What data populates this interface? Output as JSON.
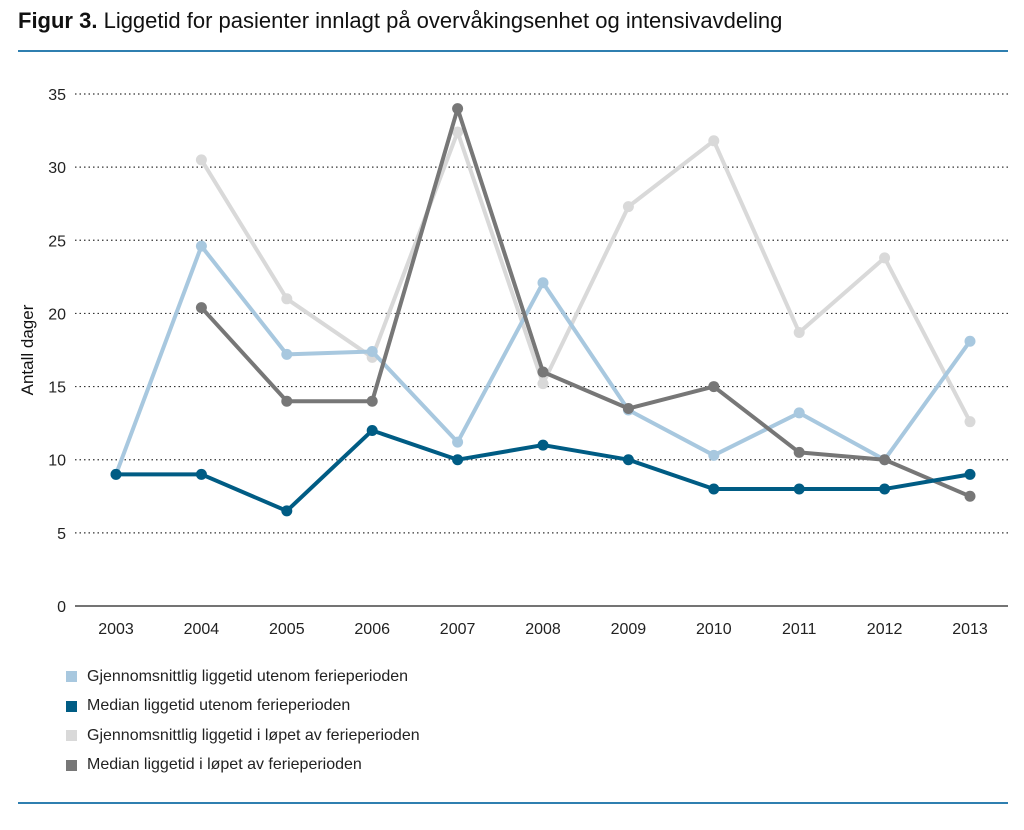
{
  "title": {
    "prefix": "Figur 3.",
    "text": "Liggetid for pasienter innlagt på overvåkingsenhet og intensivavdeling"
  },
  "chart_data": {
    "type": "line",
    "title": "Liggetid for pasienter innlagt på overvåkingsenhet og intensivavdeling",
    "xlabel": "",
    "ylabel": "Antall dager",
    "ylim": [
      0,
      35
    ],
    "yticks": [
      0,
      5,
      10,
      15,
      20,
      25,
      30,
      35
    ],
    "grid": "horizontal dotted",
    "legend": "bottom-left",
    "categories": [
      "2003",
      "2004",
      "2005",
      "2006",
      "2007",
      "2008",
      "2009",
      "2010",
      "2011",
      "2012",
      "2013"
    ],
    "series": [
      {
        "name": "Gjennomsnittlig liggetid utenom ferieperioden",
        "color": "#a8c8df",
        "values": [
          9,
          24.6,
          17.2,
          17.4,
          11.2,
          22.1,
          13.4,
          10.3,
          13.2,
          10.0,
          18.1
        ]
      },
      {
        "name": "Median liggetid utenom ferieperioden",
        "color": "#005c84",
        "values": [
          9,
          9,
          6.5,
          12,
          10,
          11,
          10,
          8,
          8,
          8,
          9
        ]
      },
      {
        "name": "Gjennomsnittlig liggetid i løpet av ferieperioden",
        "color": "#d9d9d9",
        "values": [
          null,
          30.5,
          21.0,
          17.0,
          32.4,
          15.2,
          27.3,
          31.8,
          18.7,
          23.8,
          12.6
        ]
      },
      {
        "name": "Median liggetid i løpet av ferieperioden",
        "color": "#777777",
        "values": [
          null,
          20.4,
          14,
          14,
          34,
          16,
          13.5,
          15,
          10.5,
          10,
          7.5
        ]
      }
    ]
  }
}
